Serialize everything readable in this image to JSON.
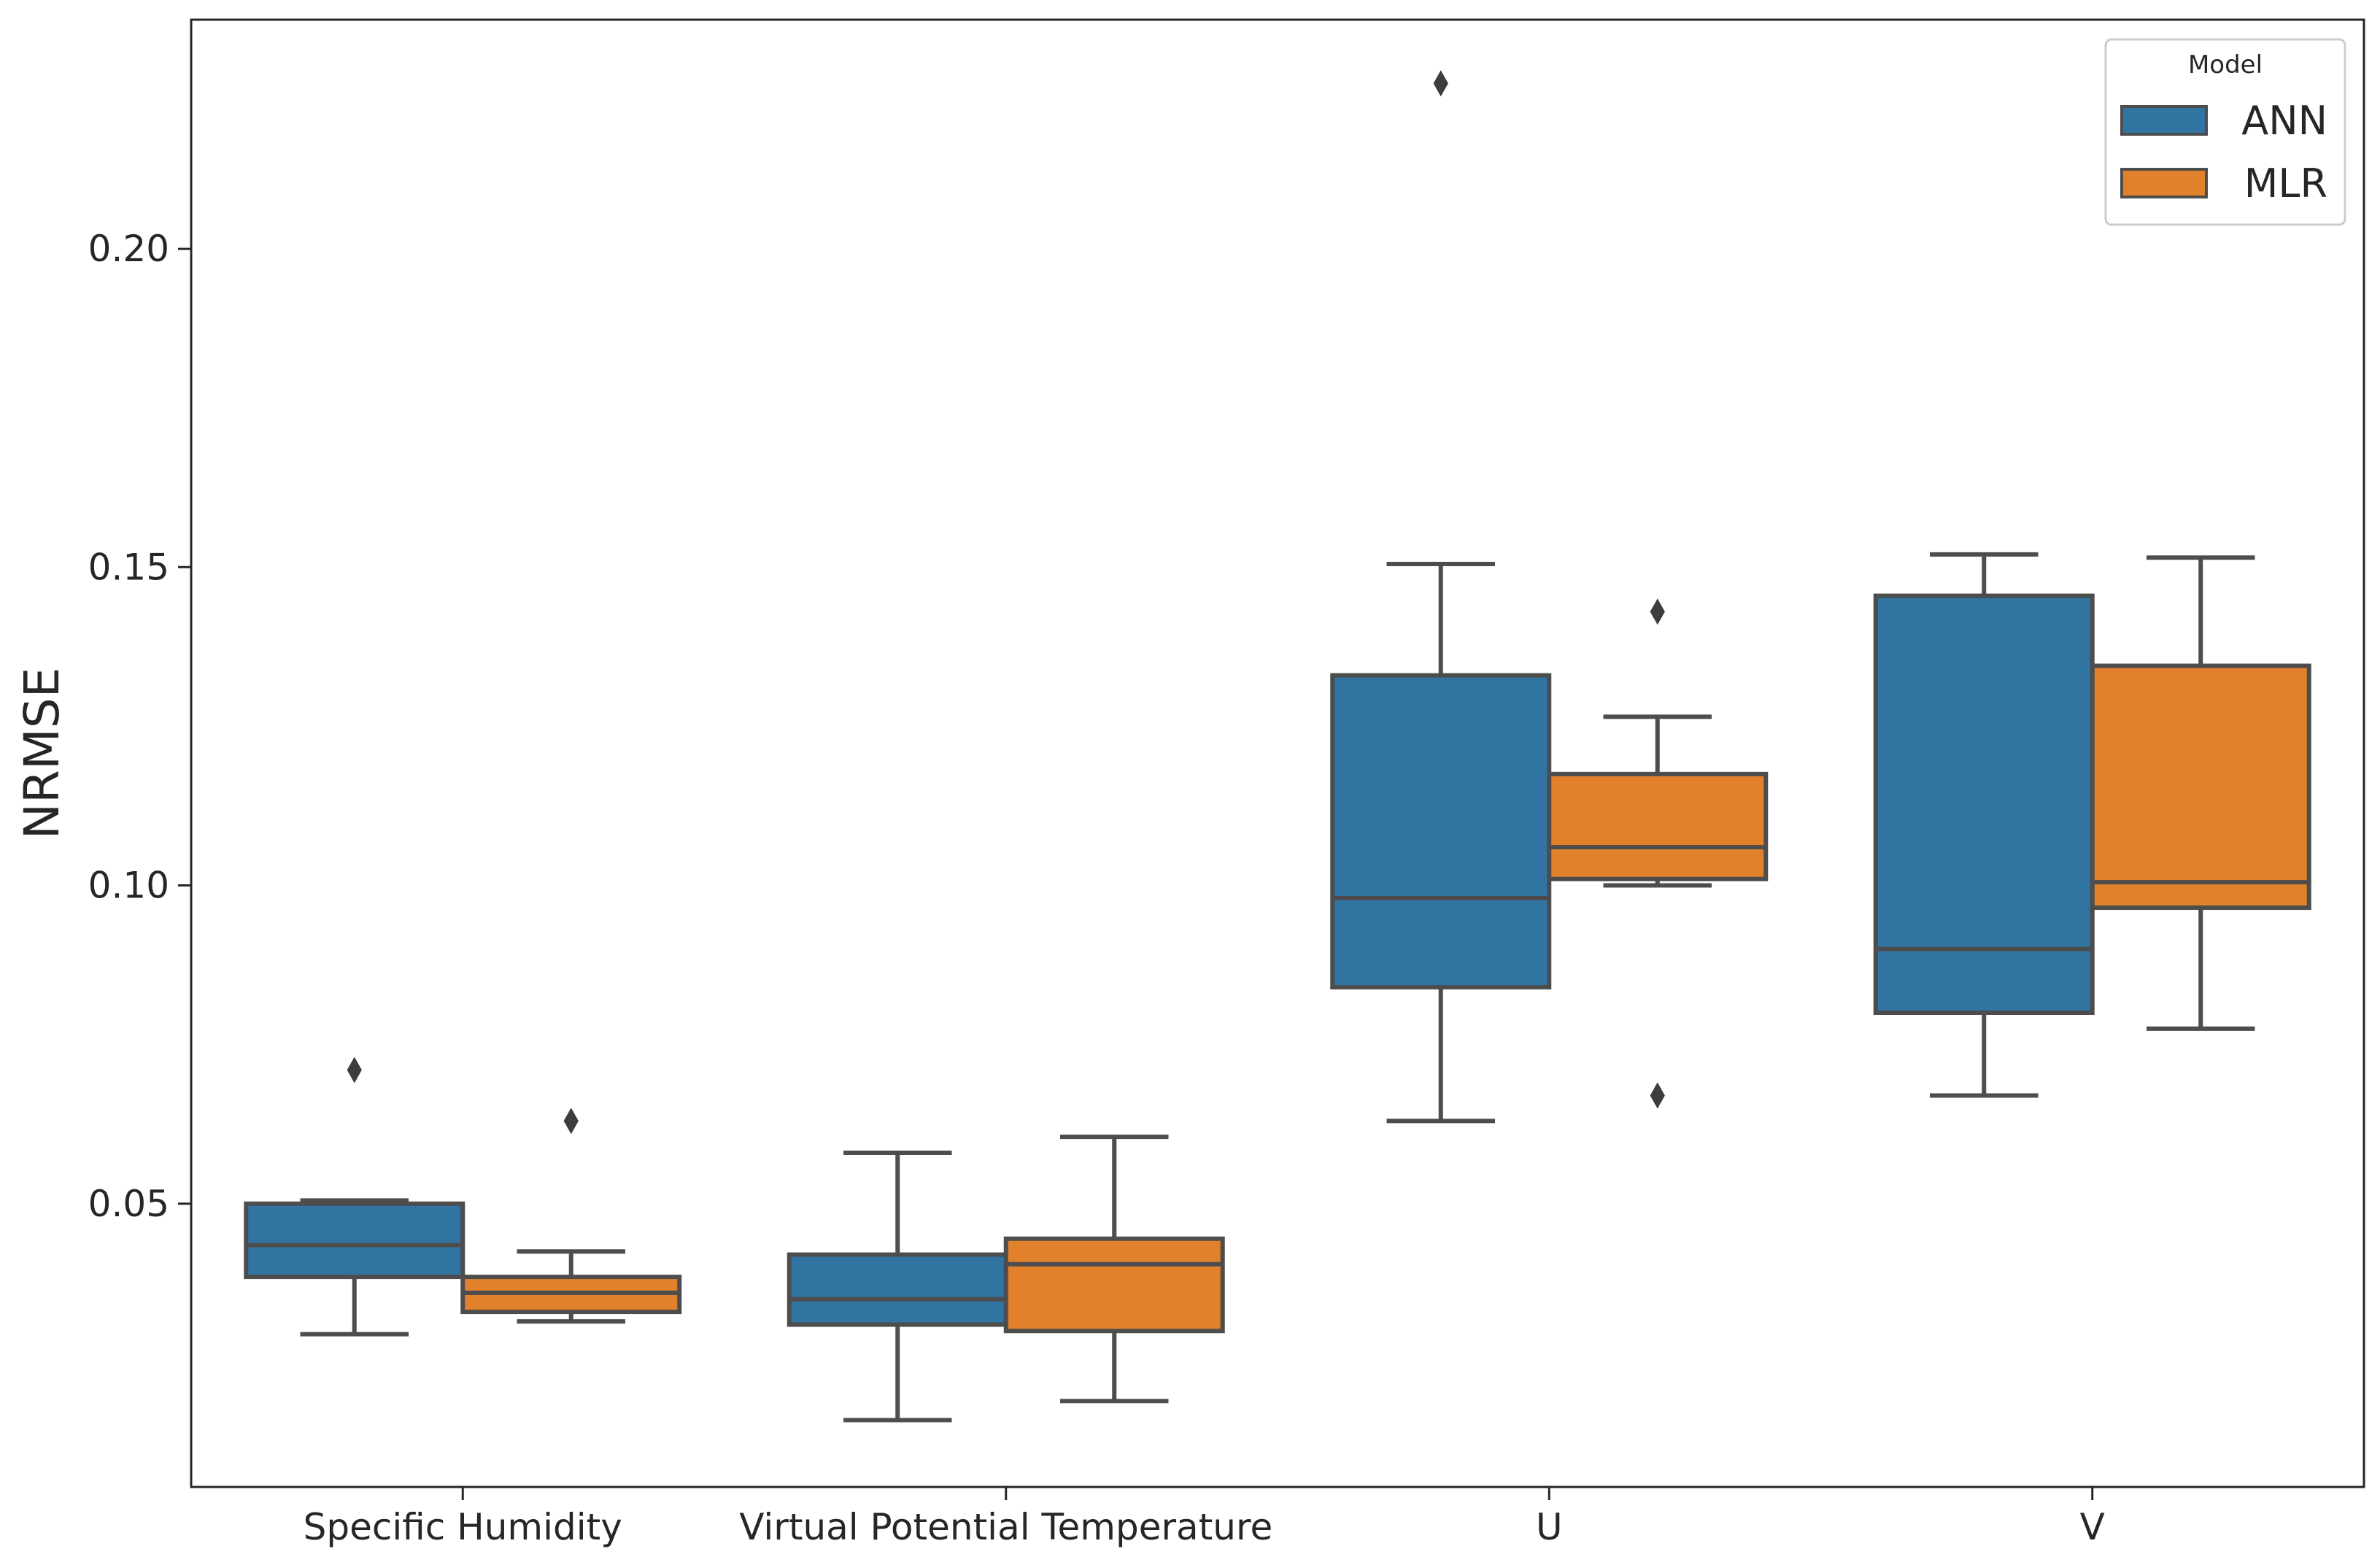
{
  "chart_data": {
    "type": "box",
    "title": "",
    "xlabel": "",
    "ylabel": "NRMSE",
    "ylim": [
      0.0055,
      0.236
    ],
    "yticks": [
      {
        "value": 0.05,
        "label": "0.05"
      },
      {
        "value": 0.1,
        "label": "0.10"
      },
      {
        "value": 0.15,
        "label": "0.15"
      },
      {
        "value": 0.2,
        "label": "0.20"
      }
    ],
    "categories": [
      "Specific Humidity",
      "Virtual Potential Temperature",
      "U",
      "V"
    ],
    "grid": false,
    "legend": {
      "title": "Model",
      "placement": "top-right",
      "entries": [
        {
          "name": "ANN",
          "color": "#3274a1"
        },
        {
          "name": "MLR",
          "color": "#e1812c"
        }
      ]
    },
    "series": [
      {
        "name": "ANN",
        "color": "#3274a1",
        "boxes": [
          {
            "whisker_low": 0.0295,
            "q1": 0.0385,
            "median": 0.0435,
            "q3": 0.05,
            "whisker_high": 0.0505,
            "outliers": [
              0.071
            ]
          },
          {
            "whisker_low": 0.016,
            "q1": 0.031,
            "median": 0.035,
            "q3": 0.042,
            "whisker_high": 0.058,
            "outliers": []
          },
          {
            "whisker_low": 0.063,
            "q1": 0.084,
            "median": 0.098,
            "q3": 0.133,
            "whisker_high": 0.1505,
            "outliers": [
              0.226
            ]
          },
          {
            "whisker_low": 0.067,
            "q1": 0.08,
            "median": 0.09,
            "q3": 0.1455,
            "whisker_high": 0.152,
            "outliers": []
          }
        ]
      },
      {
        "name": "MLR",
        "color": "#e1812c",
        "boxes": [
          {
            "whisker_low": 0.0315,
            "q1": 0.033,
            "median": 0.036,
            "q3": 0.0385,
            "whisker_high": 0.0425,
            "outliers": [
              0.063
            ]
          },
          {
            "whisker_low": 0.019,
            "q1": 0.03,
            "median": 0.0405,
            "q3": 0.0445,
            "whisker_high": 0.0605,
            "outliers": []
          },
          {
            "whisker_low": 0.1,
            "q1": 0.101,
            "median": 0.106,
            "q3": 0.1175,
            "whisker_high": 0.1265,
            "outliers": [
              0.067,
              0.143
            ]
          },
          {
            "whisker_low": 0.0775,
            "q1": 0.0965,
            "median": 0.1005,
            "q3": 0.1345,
            "whisker_high": 0.1515,
            "outliers": []
          }
        ]
      }
    ]
  }
}
